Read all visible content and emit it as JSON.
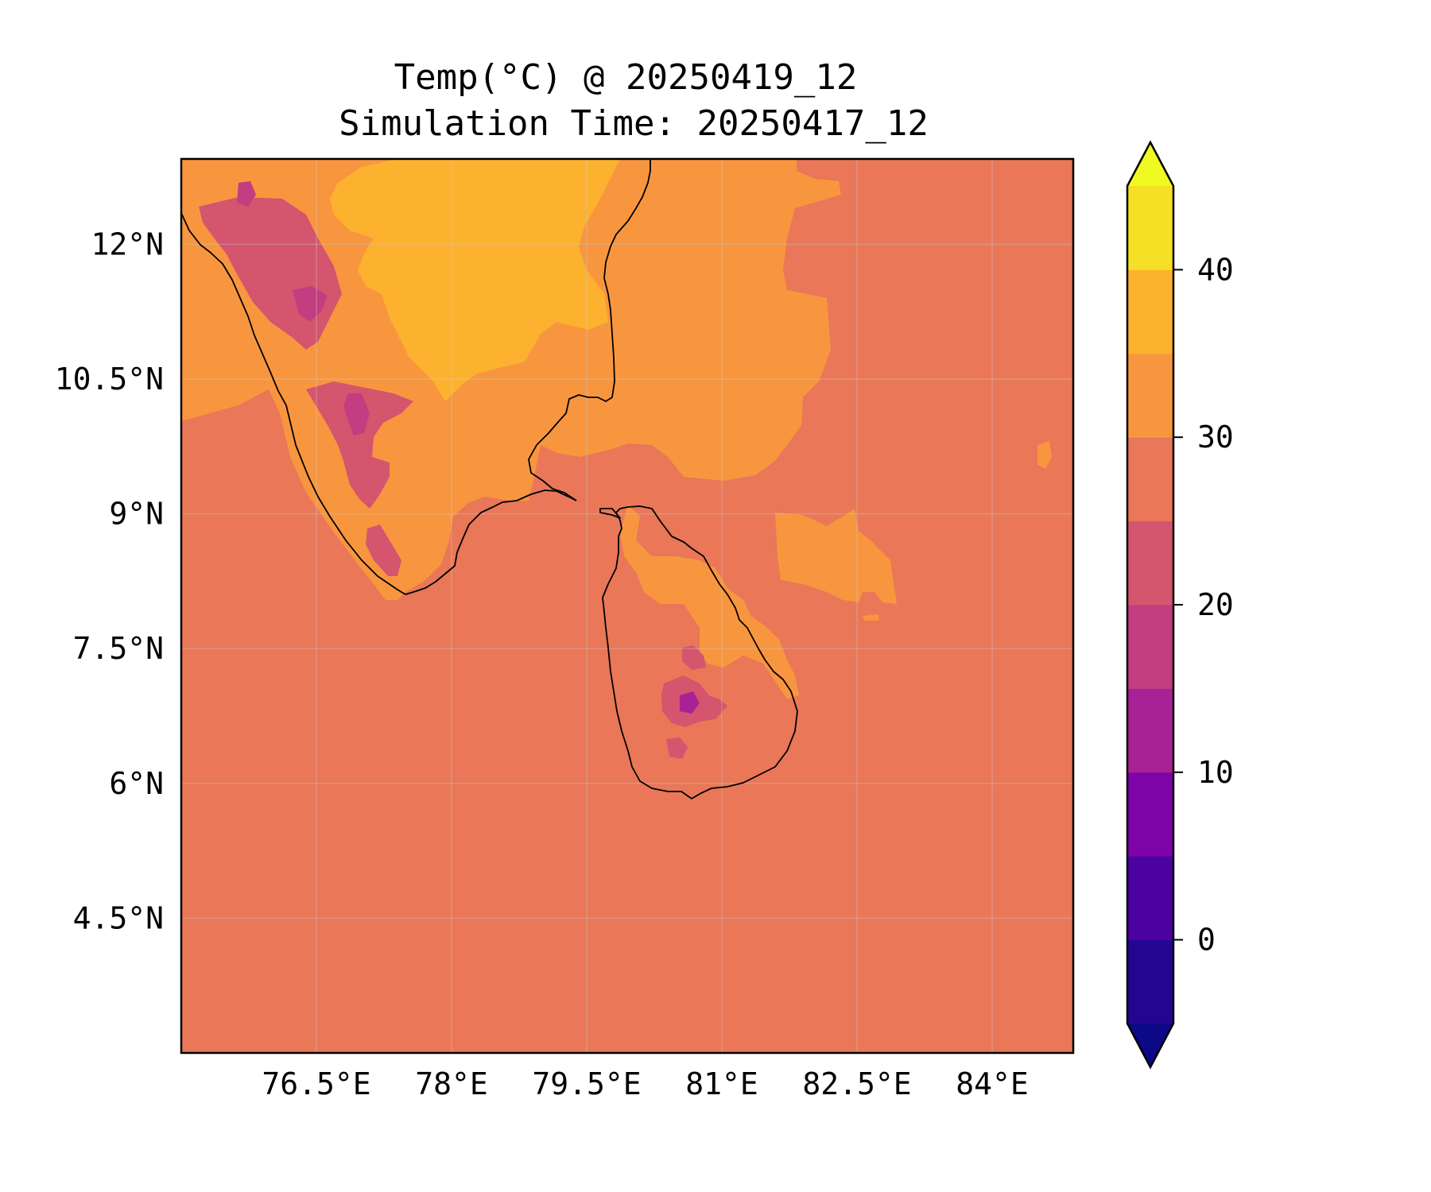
{
  "title": {
    "line1": "Temp(°C) @ 20250419_12",
    "line2": "Simulation Time: 20250417_12"
  },
  "map": {
    "extent": {
      "lon": [
        75.0,
        84.9
      ],
      "lat": [
        3.0,
        12.95
      ]
    },
    "x_ticks": [
      {
        "value": 76.5,
        "label": "76.5°E"
      },
      {
        "value": 78.0,
        "label": "78°E"
      },
      {
        "value": 79.5,
        "label": "79.5°E"
      },
      {
        "value": 81.0,
        "label": "81°E"
      },
      {
        "value": 82.5,
        "label": "82.5°E"
      },
      {
        "value": 84.0,
        "label": "84°E"
      }
    ],
    "y_ticks": [
      {
        "value": 12.0,
        "label": "12°N"
      },
      {
        "value": 10.5,
        "label": "10.5°N"
      },
      {
        "value": 9.0,
        "label": "9°N"
      },
      {
        "value": 7.5,
        "label": "7.5°N"
      },
      {
        "value": 6.0,
        "label": "6°N"
      },
      {
        "value": 4.5,
        "label": "4.5°N"
      }
    ],
    "gridlines": true
  },
  "colorbar": {
    "range": [
      -5,
      45
    ],
    "levels": [
      -5,
      0,
      5,
      10,
      15,
      20,
      25,
      30,
      35,
      40,
      45
    ],
    "colors": [
      "#220690",
      "#4c02a1",
      "#7e03a8",
      "#a82296",
      "#c33d80",
      "#d5546e",
      "#e97758",
      "#f8963f",
      "#fdb22f",
      "#f5e026"
    ],
    "under_color": "#0d0887",
    "over_color": "#f0f921",
    "tick_values": [
      0,
      10,
      20,
      30,
      40
    ],
    "tick_labels": [
      "0",
      "10",
      "20",
      "30",
      "40"
    ]
  },
  "colors": {
    "sea": "#e97758",
    "land_warm": "#f8963f",
    "land_hot": "#fdb22f",
    "land_cool": "#d5546e",
    "land_cold": "#c33d80",
    "land_coldest": "#a82296"
  }
}
